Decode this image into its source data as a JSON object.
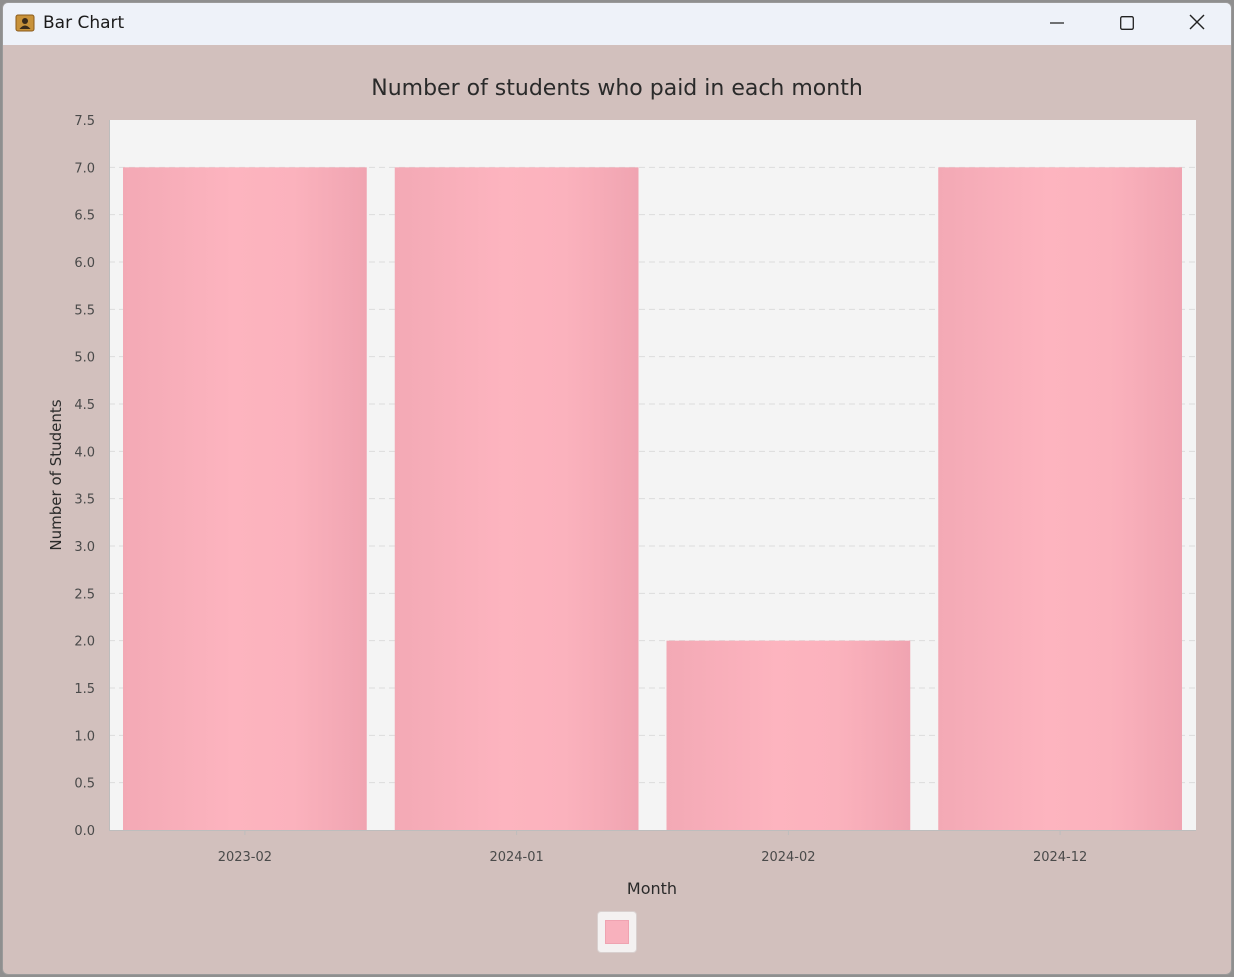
{
  "window": {
    "title": "Bar Chart",
    "icon": "contact-card-icon",
    "controls": [
      "minimize-icon",
      "maximize-icon",
      "close-icon"
    ]
  },
  "colors": {
    "background": "#d2c0bd",
    "plot_background": "#f4f4f4",
    "bar_fill": "#fbb3be",
    "bar_edge": "#f3a6b3",
    "gridline": "#dcdcdc"
  },
  "chart_data": {
    "type": "bar",
    "title": "Number of students who paid in each month",
    "xlabel": "Month",
    "ylabel": "Number of Students",
    "categories": [
      "2023-02",
      "2024-01",
      "2024-02",
      "2024-12"
    ],
    "values": [
      7,
      7,
      2,
      7
    ],
    "ylim": [
      0,
      7.5
    ],
    "yticks": [
      "0.0",
      "0.5",
      "1.0",
      "1.5",
      "2.0",
      "2.5",
      "3.0",
      "3.5",
      "4.0",
      "4.5",
      "5.0",
      "5.5",
      "6.0",
      "6.5",
      "7.0",
      "7.5"
    ],
    "grid": true,
    "legend": "bottom-center"
  }
}
